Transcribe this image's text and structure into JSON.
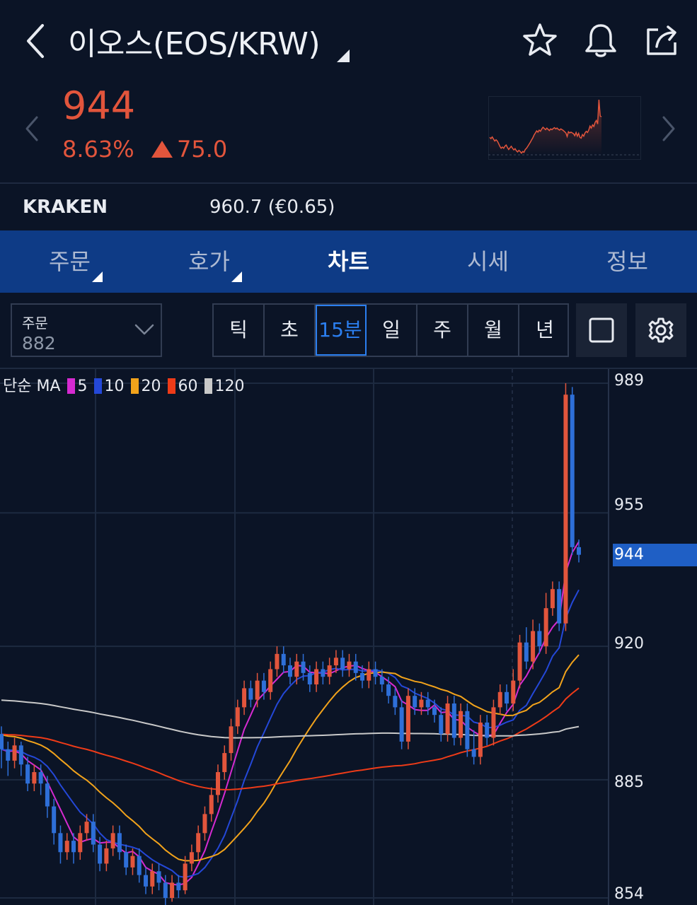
{
  "header": {
    "title": "이오스(EOS/KRW)",
    "icons": [
      "back-chevron-icon",
      "star-icon",
      "bell-icon",
      "share-icon"
    ]
  },
  "ticker": {
    "price": "944",
    "change_pct": "8.63%",
    "change_abs": "75.0",
    "color_up": "#e2553c"
  },
  "exchange": {
    "name": "KRAKEN",
    "price": "960.7 (€0.65)"
  },
  "tabs": [
    {
      "label": "주문",
      "has_corner": true
    },
    {
      "label": "호가",
      "has_corner": true
    },
    {
      "label": "차트",
      "active": true
    },
    {
      "label": "시세"
    },
    {
      "label": "정보"
    }
  ],
  "order_select": {
    "label": "주문",
    "value": "882"
  },
  "timeframes": [
    "틱",
    "초",
    "15분",
    "일",
    "주",
    "월",
    "년"
  ],
  "active_timeframe": "15분",
  "legend": {
    "prefix": "단순 MA",
    "items": [
      {
        "period": "5",
        "color": "#d62ad1"
      },
      {
        "period": "10",
        "color": "#2448d8"
      },
      {
        "period": "20",
        "color": "#f2a31b"
      },
      {
        "period": "60",
        "color": "#ee3b18"
      },
      {
        "period": "120",
        "color": "#c9c9c9"
      }
    ]
  },
  "chart_data": {
    "type": "candlestick",
    "y_axis_ticks": [
      "989",
      "955",
      "920",
      "885",
      "854"
    ],
    "current_price_tag": "944",
    "ylim": [
      854,
      989
    ],
    "up_color": "#e2553c",
    "down_color": "#2e6fd8",
    "candles": [
      [
        897,
        893,
        899,
        888
      ],
      [
        893,
        890,
        895,
        886
      ],
      [
        890,
        894,
        896,
        888
      ],
      [
        894,
        889,
        895,
        886
      ],
      [
        889,
        884,
        891,
        882
      ],
      [
        884,
        887,
        889,
        882
      ],
      [
        887,
        884,
        889,
        881
      ],
      [
        884,
        878,
        886,
        875
      ],
      [
        878,
        871,
        880,
        868
      ],
      [
        871,
        866,
        873,
        863
      ],
      [
        866,
        869,
        871,
        864
      ],
      [
        869,
        866,
        871,
        863
      ],
      [
        866,
        871,
        873,
        864
      ],
      [
        871,
        874,
        876,
        869
      ],
      [
        874,
        868,
        876,
        866
      ],
      [
        868,
        863,
        870,
        861
      ],
      [
        863,
        867,
        869,
        861
      ],
      [
        867,
        871,
        873,
        865
      ],
      [
        871,
        866,
        873,
        864
      ],
      [
        866,
        862,
        868,
        860
      ],
      [
        862,
        865,
        867,
        860
      ],
      [
        865,
        860,
        867,
        858
      ],
      [
        860,
        857,
        862,
        855
      ],
      [
        857,
        861,
        863,
        855
      ],
      [
        861,
        858,
        863,
        856
      ],
      [
        858,
        854,
        860,
        852
      ],
      [
        854,
        858,
        860,
        853
      ],
      [
        858,
        856,
        860,
        854
      ],
      [
        856,
        863,
        865,
        855
      ],
      [
        863,
        866,
        868,
        861
      ],
      [
        866,
        871,
        873,
        864
      ],
      [
        871,
        876,
        878,
        869
      ],
      [
        876,
        881,
        883,
        874
      ],
      [
        881,
        887,
        889,
        879
      ],
      [
        887,
        892,
        894,
        885
      ],
      [
        892,
        899,
        901,
        890
      ],
      [
        899,
        904,
        906,
        897
      ],
      [
        904,
        909,
        911,
        902
      ],
      [
        909,
        906,
        911,
        904
      ],
      [
        906,
        911,
        913,
        904
      ],
      [
        911,
        908,
        913,
        906
      ],
      [
        908,
        914,
        916,
        906
      ],
      [
        914,
        918,
        920,
        912
      ],
      [
        918,
        915,
        920,
        913
      ],
      [
        915,
        912,
        917,
        910
      ],
      [
        912,
        916,
        918,
        910
      ],
      [
        916,
        913,
        918,
        911
      ],
      [
        913,
        910,
        915,
        908
      ],
      [
        910,
        914,
        916,
        908
      ],
      [
        914,
        912,
        916,
        910
      ],
      [
        912,
        915,
        917,
        910
      ],
      [
        915,
        917,
        919,
        913
      ],
      [
        917,
        914,
        919,
        912
      ],
      [
        914,
        916,
        918,
        912
      ],
      [
        916,
        913,
        918,
        911
      ],
      [
        913,
        911,
        915,
        909
      ],
      [
        911,
        914,
        916,
        909
      ],
      [
        914,
        912,
        916,
        910
      ],
      [
        912,
        910,
        914,
        908
      ],
      [
        910,
        907,
        912,
        905
      ],
      [
        907,
        904,
        909,
        902
      ],
      [
        904,
        895,
        906,
        893
      ],
      [
        895,
        907,
        909,
        893
      ],
      [
        907,
        904,
        909,
        902
      ],
      [
        904,
        906,
        908,
        902
      ],
      [
        906,
        904,
        908,
        902
      ],
      [
        904,
        902,
        906,
        900
      ],
      [
        902,
        897,
        904,
        895
      ],
      [
        897,
        905,
        907,
        895
      ],
      [
        905,
        896,
        907,
        894
      ],
      [
        896,
        903,
        905,
        894
      ],
      [
        903,
        893,
        905,
        891
      ],
      [
        893,
        891,
        898,
        889
      ],
      [
        891,
        900,
        902,
        889
      ],
      [
        900,
        896,
        902,
        894
      ],
      [
        896,
        904,
        906,
        894
      ],
      [
        904,
        908,
        910,
        902
      ],
      [
        908,
        905,
        910,
        903
      ],
      [
        905,
        911,
        914,
        903
      ],
      [
        911,
        921,
        923,
        909
      ],
      [
        921,
        916,
        925,
        914
      ],
      [
        916,
        924,
        927,
        914
      ],
      [
        924,
        920,
        926,
        918
      ],
      [
        920,
        930,
        934,
        918
      ],
      [
        930,
        935,
        937,
        928
      ],
      [
        935,
        926,
        937,
        924
      ],
      [
        926,
        986,
        989,
        924
      ],
      [
        986,
        946,
        988,
        944
      ],
      [
        946,
        944,
        948,
        942
      ]
    ]
  }
}
